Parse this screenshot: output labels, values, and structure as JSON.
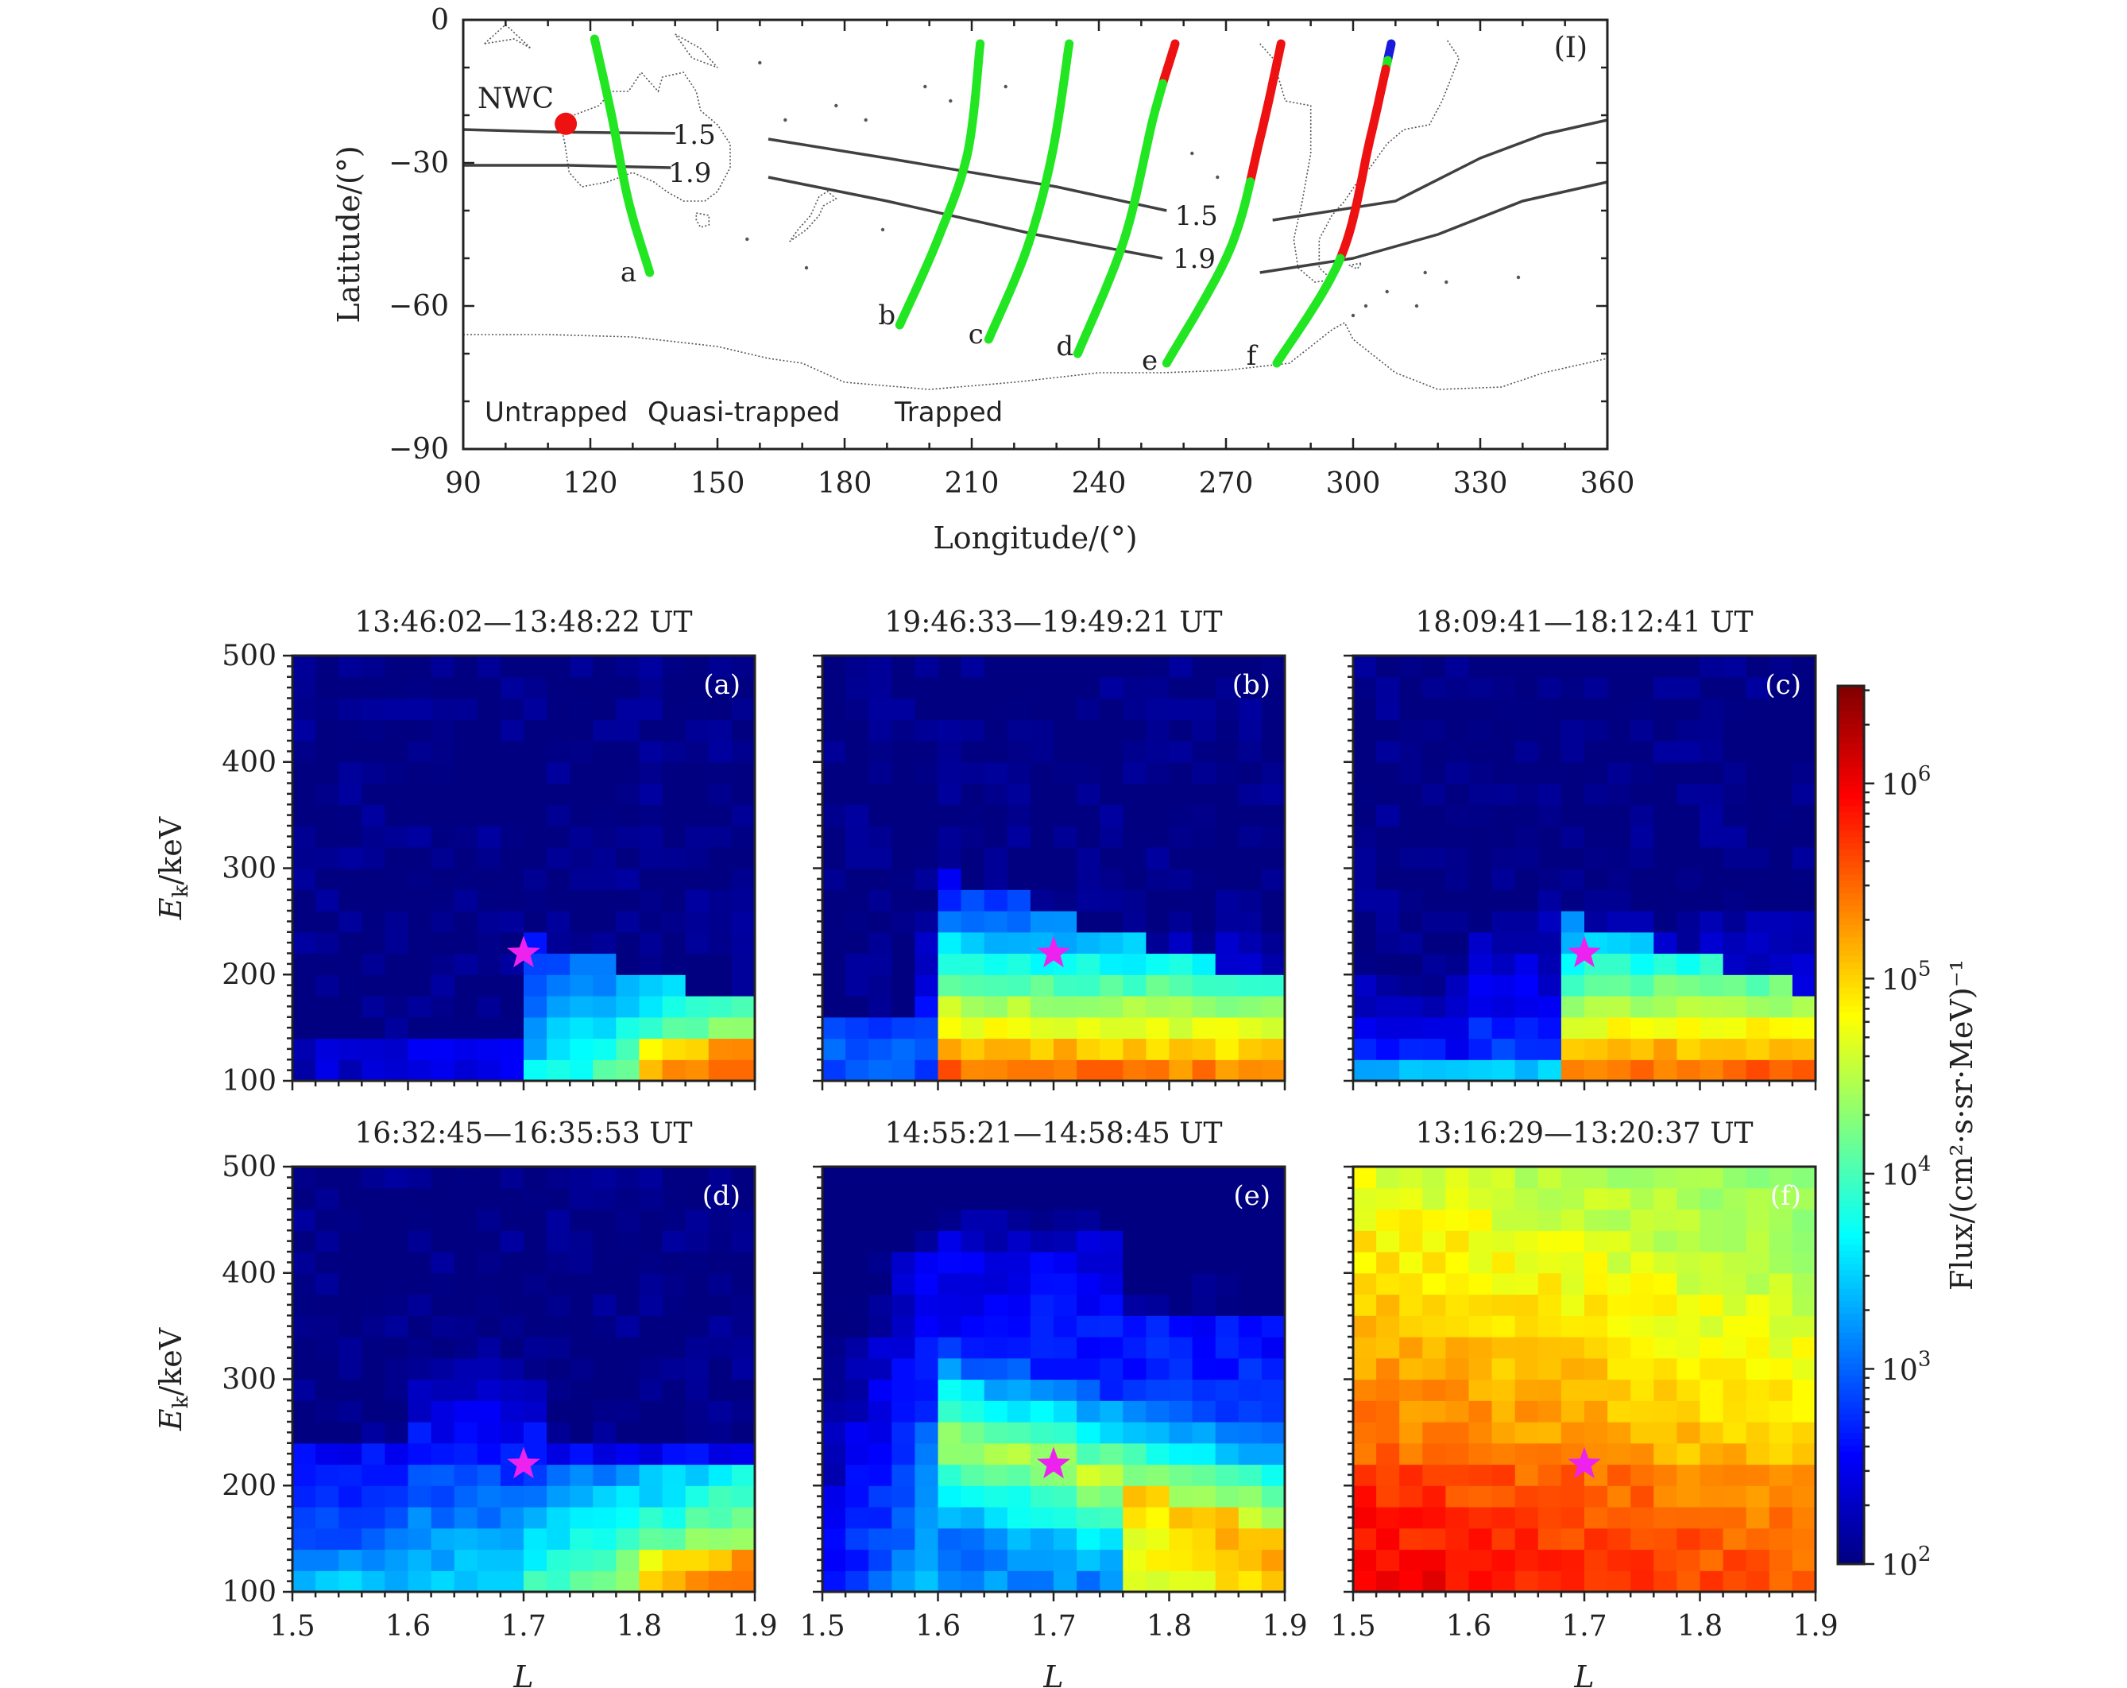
{
  "colors": {
    "untrapped": "#1a1adc",
    "quasi_trapped": "#22e622",
    "trapped": "#ee1111",
    "nwc": "#ee1111",
    "l_contour": "#404040",
    "star": "#ee22ee"
  },
  "map": {
    "panel_label": "(I)",
    "xlabel": "Longitude/(°)",
    "ylabel": "Latitude/(°)",
    "xticks": [
      "90",
      "120",
      "150",
      "180",
      "210",
      "240",
      "270",
      "300",
      "330",
      "360"
    ],
    "yticks": [
      "0",
      "−30",
      "−60",
      "−90"
    ],
    "station": {
      "label": "NWC",
      "lon": 114.2,
      "lat": -21.8
    },
    "legend": [
      {
        "label": "Untrapped",
        "color": "#1a1adc"
      },
      {
        "label": "Quasi-trapped",
        "color": "#22e622"
      },
      {
        "label": "Trapped",
        "color": "#ee1111"
      }
    ],
    "tracks": [
      {
        "name": "a",
        "label_lon": 129,
        "label_lat": -53,
        "points": [
          [
            121,
            -4
          ],
          [
            125,
            -20
          ],
          [
            129,
            -38
          ],
          [
            134,
            -53
          ]
        ],
        "segments": [
          {
            "from": 0,
            "to": 1,
            "state": "quasi_trapped"
          }
        ]
      },
      {
        "name": "b",
        "label_lon": 190,
        "label_lat": -62,
        "points": [
          [
            212,
            -5
          ],
          [
            209,
            -28
          ],
          [
            202,
            -46
          ],
          [
            193,
            -64
          ]
        ],
        "segments": [
          {
            "from": 0,
            "to": 1,
            "state": "quasi_trapped"
          }
        ]
      },
      {
        "name": "c",
        "label_lon": 211,
        "label_lat": -66,
        "points": [
          [
            233,
            -5
          ],
          [
            229,
            -28
          ],
          [
            223,
            -48
          ],
          [
            214,
            -67
          ]
        ],
        "segments": [
          {
            "from": 0,
            "to": 1,
            "state": "quasi_trapped"
          }
        ]
      },
      {
        "name": "d",
        "label_lon": 232,
        "label_lat": -68.5,
        "points": [
          [
            258,
            -5
          ],
          [
            253,
            -20
          ],
          [
            246,
            -46
          ],
          [
            235,
            -70
          ]
        ],
        "segments": [
          {
            "from": 0,
            "to": 0.22,
            "state": "trapped"
          },
          {
            "from": 0.22,
            "to": 1,
            "state": "quasi_trapped"
          }
        ]
      },
      {
        "name": "e",
        "label_lon": 252,
        "label_lat": -71.5,
        "points": [
          [
            283,
            -5
          ],
          [
            278,
            -25
          ],
          [
            271,
            -48
          ],
          [
            256,
            -72
          ]
        ],
        "segments": [
          {
            "from": 0,
            "to": 0.47,
            "state": "trapped"
          },
          {
            "from": 0.47,
            "to": 1,
            "state": "quasi_trapped"
          }
        ]
      },
      {
        "name": "f",
        "label_lon": 276,
        "label_lat": -70.5,
        "points": [
          [
            309,
            -5
          ],
          [
            304,
            -25
          ],
          [
            297,
            -50
          ],
          [
            282,
            -72
          ]
        ],
        "segments": [
          {
            "from": 0,
            "to": 0.08,
            "state": "untrapped"
          },
          {
            "from": 0.08,
            "to": 0.12,
            "state": "quasi_trapped"
          },
          {
            "from": 0.12,
            "to": 0.66,
            "state": "trapped"
          },
          {
            "from": 0.66,
            "to": 1,
            "state": "quasi_trapped"
          }
        ]
      }
    ],
    "contours": [
      {
        "label": "1.5",
        "segments": [
          [
            [
              90,
              -23
            ],
            [
              110,
              -23.5
            ],
            [
              140,
              -23.8
            ]
          ],
          [
            [
              162,
              -25
            ],
            [
              190,
              -29
            ],
            [
              230,
              -35
            ],
            [
              256,
              -40
            ]
          ],
          [
            [
              281,
              -42
            ],
            [
              310,
              -38
            ],
            [
              330,
              -29
            ],
            [
              345,
              -24
            ],
            [
              360,
              -21
            ]
          ]
        ],
        "label_points": [
          {
            "lon": 144.5,
            "lat": -24
          },
          {
            "lon": 263,
            "lat": -41
          }
        ]
      },
      {
        "label": "1.9",
        "segments": [
          [
            [
              90,
              -30.5
            ],
            [
              115,
              -30.5
            ],
            [
              139,
              -31
            ]
          ],
          [
            [
              162,
              -33
            ],
            [
              190,
              -38
            ],
            [
              225,
              -45
            ],
            [
              255,
              -50
            ]
          ],
          [
            [
              278,
              -53
            ],
            [
              300,
              -50
            ],
            [
              320,
              -45
            ],
            [
              340,
              -38
            ],
            [
              360,
              -34
            ]
          ]
        ],
        "label_points": [
          {
            "lon": 143.5,
            "lat": -32
          },
          {
            "lon": 262.5,
            "lat": -50
          }
        ]
      }
    ]
  },
  "colorbar": {
    "label": "Flux/(cm²·s·sr·MeV)⁻¹",
    "ticks": [
      {
        "base": "10",
        "exp": "2",
        "decade": 2
      },
      {
        "base": "10",
        "exp": "3",
        "decade": 3
      },
      {
        "base": "10",
        "exp": "4",
        "decade": 4
      },
      {
        "base": "10",
        "exp": "5",
        "decade": 5
      },
      {
        "base": "10",
        "exp": "6",
        "decade": 6
      }
    ],
    "min_decade": 2,
    "max_decade": 6.5
  },
  "heatmaps": {
    "xlabel": "L",
    "ylabel": "E",
    "ylabel_sub": "k",
    "ylabel_unit": "/keV",
    "xticks": [
      "1.5",
      "1.6",
      "1.7",
      "1.8",
      "1.9"
    ],
    "yticks": [
      "100",
      "200",
      "300",
      "400",
      "500"
    ],
    "star": {
      "L": 1.7,
      "E": 220
    },
    "panels": [
      {
        "label": "(a)",
        "title": "13:46:02—13:48:22 UT",
        "model": "a"
      },
      {
        "label": "(b)",
        "title": "19:46:33—19:49:21 UT",
        "model": "b"
      },
      {
        "label": "(c)",
        "title": "18:09:41—18:12:41 UT",
        "model": "c"
      },
      {
        "label": "(d)",
        "title": "16:32:45—16:35:53 UT",
        "model": "d"
      },
      {
        "label": "(e)",
        "title": "14:55:21—14:58:45 UT",
        "model": "e"
      },
      {
        "label": "(f)",
        "title": "13:16:29—13:20:37 UT",
        "model": "f"
      }
    ]
  },
  "chart_data": [
    {
      "type": "line",
      "title": "(I)",
      "xlabel": "Longitude/(°)",
      "ylabel": "Latitude/(°)",
      "xlim": [
        90,
        360
      ],
      "ylim": [
        -90,
        0
      ],
      "series": [
        {
          "name": "Untrapped",
          "values": []
        },
        {
          "name": "Quasi-trapped",
          "values": []
        },
        {
          "name": "Trapped",
          "values": []
        }
      ]
    },
    {
      "type": "heatmap",
      "title": "13:46:02—13:48:22 UT",
      "panel": "(a)",
      "xlabel": "L",
      "ylabel": "Ek/keV",
      "xlim": [
        1.5,
        1.9
      ],
      "ylim": [
        100,
        500
      ],
      "zlim_log10": [
        2,
        6.5
      ]
    },
    {
      "type": "heatmap",
      "title": "19:46:33—19:49:21 UT",
      "panel": "(b)",
      "xlabel": "L",
      "ylabel": "Ek/keV",
      "xlim": [
        1.5,
        1.9
      ],
      "ylim": [
        100,
        500
      ],
      "zlim_log10": [
        2,
        6.5
      ]
    },
    {
      "type": "heatmap",
      "title": "18:09:41—18:12:41 UT",
      "panel": "(c)",
      "xlabel": "L",
      "ylabel": "Ek/keV",
      "xlim": [
        1.5,
        1.9
      ],
      "ylim": [
        100,
        500
      ],
      "zlim_log10": [
        2,
        6.5
      ]
    },
    {
      "type": "heatmap",
      "title": "16:32:45—16:35:53 UT",
      "panel": "(d)",
      "xlabel": "L",
      "ylabel": "Ek/keV",
      "xlim": [
        1.5,
        1.9
      ],
      "ylim": [
        100,
        500
      ],
      "zlim_log10": [
        2,
        6.5
      ]
    },
    {
      "type": "heatmap",
      "title": "14:55:21—14:58:45 UT",
      "panel": "(e)",
      "xlabel": "L",
      "ylabel": "Ek/keV",
      "xlim": [
        1.5,
        1.9
      ],
      "ylim": [
        100,
        500
      ],
      "zlim_log10": [
        2,
        6.5
      ]
    },
    {
      "type": "heatmap",
      "title": "13:16:29—13:20:37 UT",
      "panel": "(f)",
      "xlabel": "L",
      "ylabel": "Ek/keV",
      "xlim": [
        1.5,
        1.9
      ],
      "ylim": [
        100,
        500
      ],
      "zlim_log10": [
        2,
        6.5
      ]
    }
  ]
}
